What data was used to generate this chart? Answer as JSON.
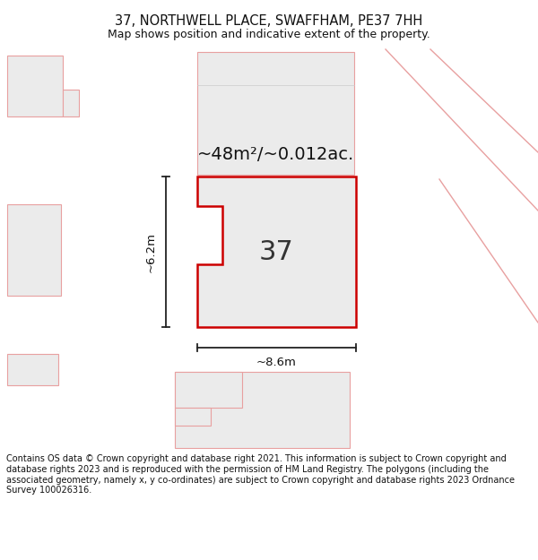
{
  "title": "37, NORTHWELL PLACE, SWAFFHAM, PE37 7HH",
  "subtitle": "Map shows position and indicative extent of the property.",
  "footer": "Contains OS data © Crown copyright and database right 2021. This information is subject to Crown copyright and database rights 2023 and is reproduced with the permission of HM Land Registry. The polygons (including the associated geometry, namely x, y co-ordinates) are subject to Crown copyright and database rights 2023 Ordnance Survey 100026316.",
  "bg_color": "#ffffff",
  "building_fill": "#ebebeb",
  "building_edge_faint": "#e8a0a0",
  "main_fill": "#ebebeb",
  "main_edge": "#cc0000",
  "dim_color": "#222222",
  "road_color": "#e8a0a0",
  "area_label": "~48m²/~0.012ac.",
  "number_label": "37",
  "dim_width": "~8.6m",
  "dim_height": "~6.2m",
  "title_fontsize": 10.5,
  "subtitle_fontsize": 9.0,
  "footer_fontsize": 7.0
}
